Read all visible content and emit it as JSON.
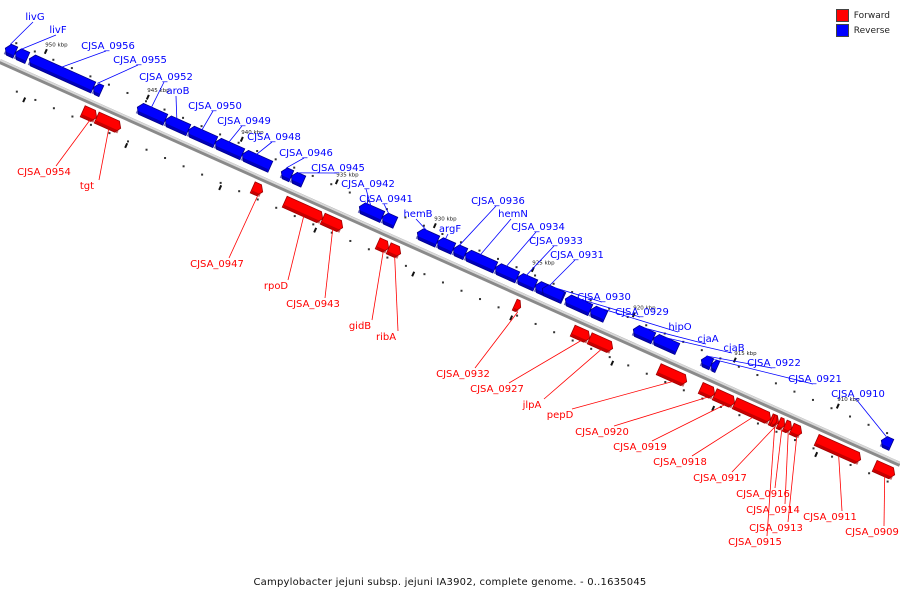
{
  "legend": {
    "forward_label": "Forward",
    "reverse_label": "Reverse",
    "forward_color": "#ff0000",
    "reverse_color": "#0000ff"
  },
  "caption": "Campylobacter jejuni subsp. jejuni IA3902, complete genome. - 0..1635045",
  "axis_ticks": [
    "950 kbp",
    "945 kbp",
    "940 kbp",
    "935 kbp",
    "930 kbp",
    "925 kbp",
    "920 kbp",
    "915 kbp",
    "910 kbp"
  ],
  "reverse_genes": [
    "livG",
    "livF",
    "CJSA_0956",
    "CJSA_0955",
    "CJSA_0952",
    "aroB",
    "CJSA_0950",
    "CJSA_0949",
    "CJSA_0948",
    "CJSA_0946",
    "CJSA_0945",
    "CJSA_0942",
    "CJSA_0941",
    "hemB",
    "argF",
    "CJSA_0936",
    "hemN",
    "CJSA_0934",
    "CJSA_0933",
    "CJSA_0931",
    "CJSA_0930",
    "CJSA_0929",
    "hipO",
    "cjaA",
    "cjaB",
    "CJSA_0922",
    "CJSA_0921",
    "CJSA_0910"
  ],
  "forward_genes": [
    "CJSA_0954",
    "tgt",
    "CJSA_0947",
    "rpoD",
    "CJSA_0943",
    "gidB",
    "ribA",
    "CJSA_0932",
    "CJSA_0927",
    "jlpA",
    "pepD",
    "CJSA_0920",
    "CJSA_0919",
    "CJSA_0918",
    "CJSA_0917",
    "CJSA_0916",
    "CJSA_0914",
    "CJSA_0913",
    "CJSA_0915",
    "CJSA_0911",
    "CJSA_0909"
  ]
}
